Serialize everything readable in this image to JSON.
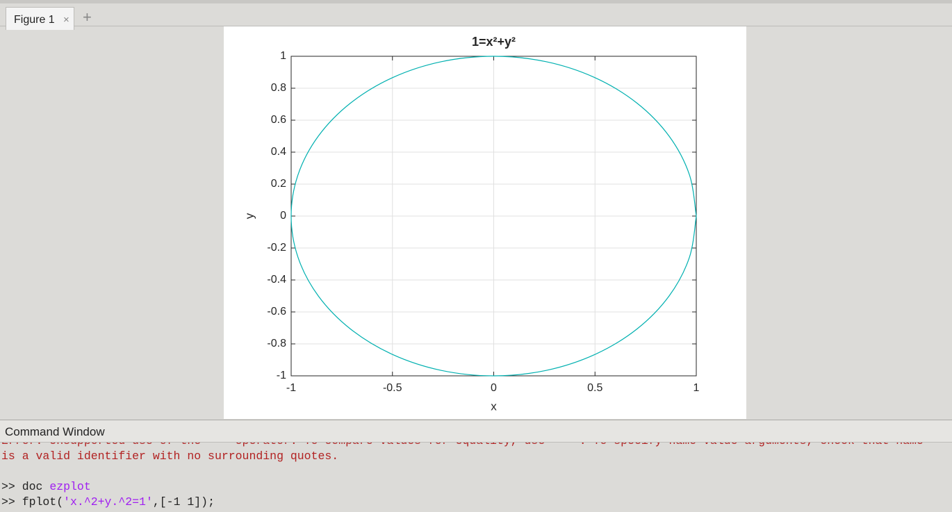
{
  "tabs": {
    "figure_tab": "Figure 1",
    "close": "×",
    "add": "+"
  },
  "chart_data": {
    "type": "line",
    "title": "1=x²+y²",
    "x_label": "x",
    "y_label": "y",
    "x": [
      1,
      0.966,
      0.866,
      0.707,
      0.5,
      0.259,
      0,
      -0.259,
      -0.5,
      -0.707,
      -0.866,
      -0.966,
      -1,
      -0.966,
      -0.866,
      -0.707,
      -0.5,
      -0.259,
      0,
      0.259,
      0.5,
      0.707,
      0.866,
      0.966,
      1
    ],
    "series": [
      {
        "color": "#00b0b0",
        "values": [
          0,
          0.259,
          0.5,
          0.707,
          0.866,
          0.966,
          1,
          0.966,
          0.866,
          0.707,
          0.5,
          0.259,
          0,
          -0.259,
          -0.5,
          -0.707,
          -0.866,
          -0.966,
          -1,
          -0.966,
          -0.866,
          -0.707,
          -0.5,
          -0.259,
          0
        ]
      }
    ],
    "xlim": [
      -1,
      1
    ],
    "ylim": [
      -1,
      1
    ],
    "xticks": [
      -1,
      -0.5,
      0,
      0.5,
      1
    ],
    "yticks": [
      -1,
      -0.8,
      -0.6,
      -0.4,
      -0.2,
      0,
      0.2,
      0.4,
      0.6,
      0.8,
      1
    ],
    "grid": true
  },
  "command_window": {
    "title": "Command Window",
    "lines": [
      [
        {
          "text": "Error: Unsupported use of the '=' operator. To compare values for equality, use '=='. To specify name-value arguments, check that name",
          "style": "error"
        }
      ],
      [
        {
          "text": "is a valid identifier with no surrounding quotes.",
          "style": "error"
        }
      ],
      [],
      [
        {
          "text": ">> doc ",
          "style": "plain"
        },
        {
          "text": "ezplot",
          "style": "string"
        }
      ],
      [
        {
          "text": ">> fplot(",
          "style": "plain"
        },
        {
          "text": "'x.^2+y.^2=1'",
          "style": "string"
        },
        {
          "text": ",[-1 1]);",
          "style": "plain"
        }
      ]
    ]
  }
}
